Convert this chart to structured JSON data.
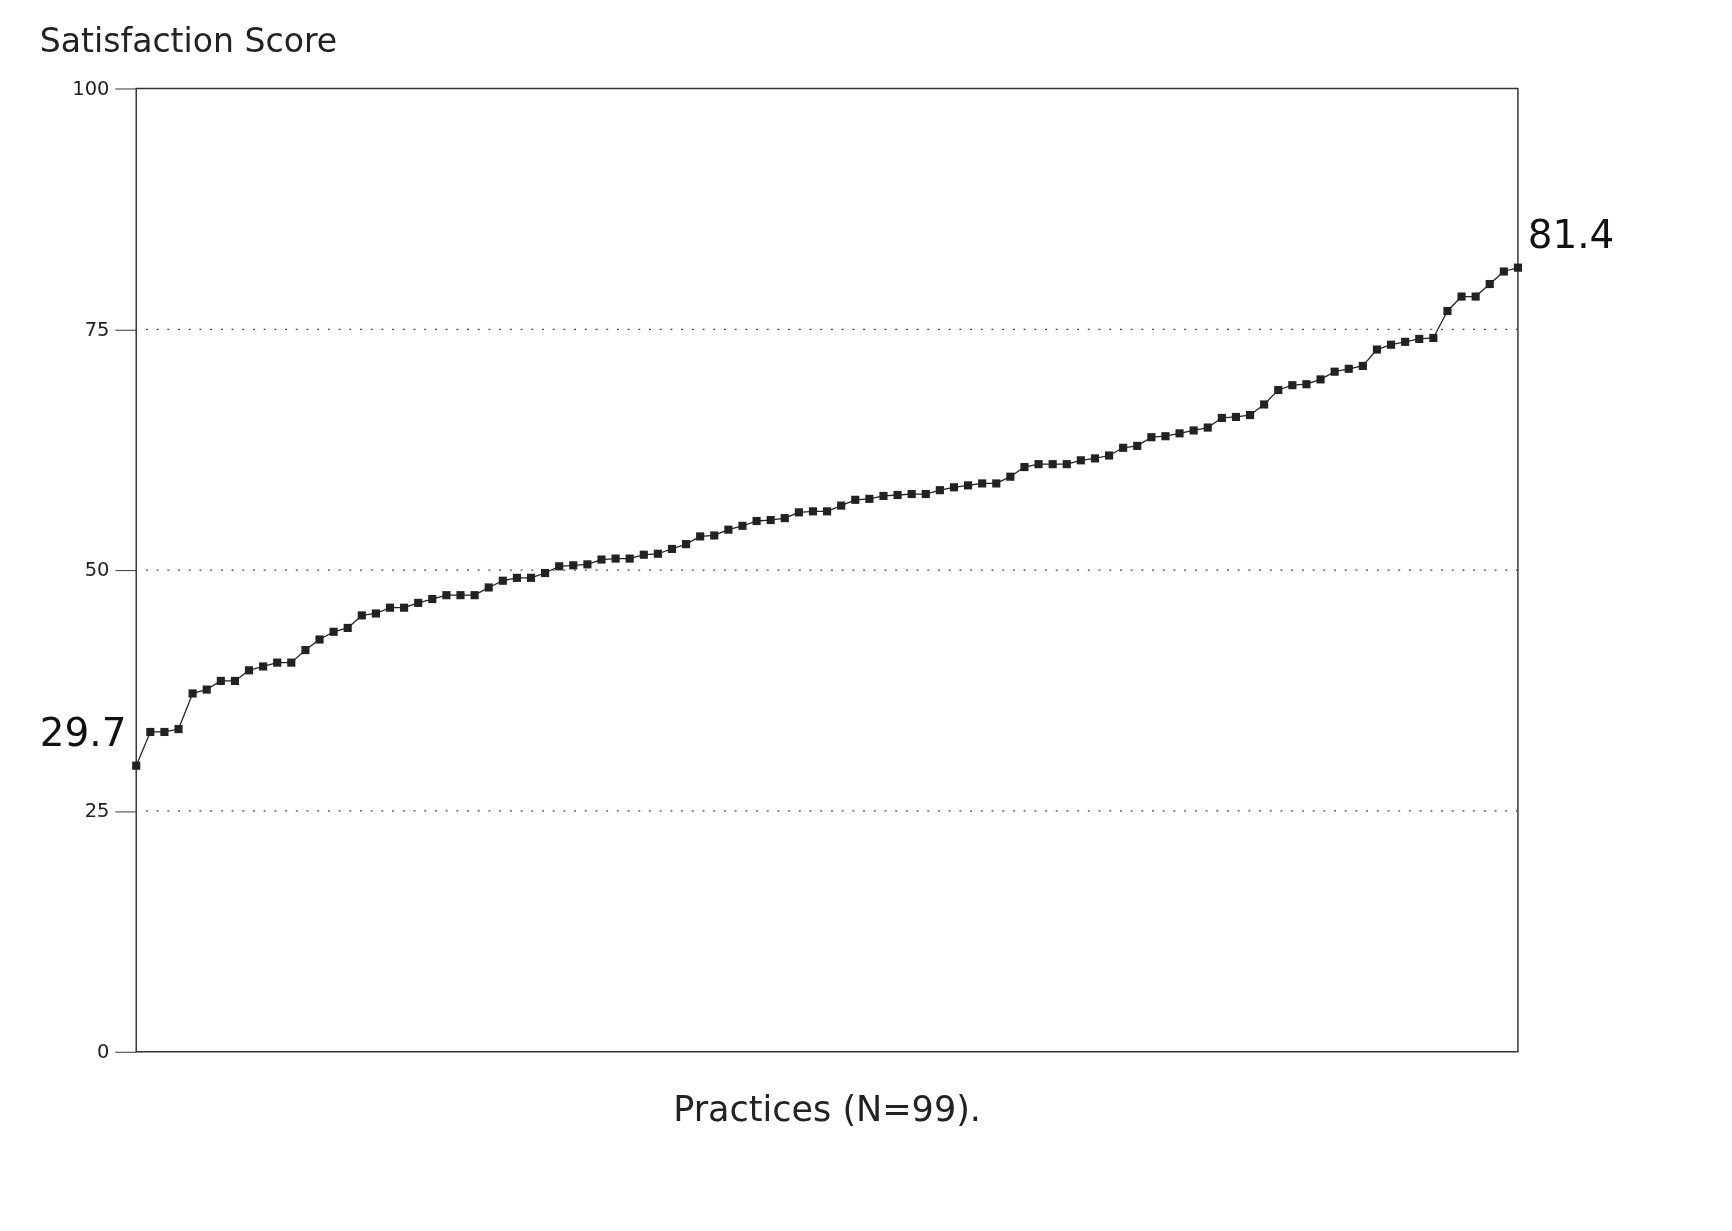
{
  "chart_data": {
    "type": "line",
    "ylabel": "Satisfaction Score",
    "xlabel": "Practices (N=99).",
    "categories": [
      null,
      null,
      null,
      null,
      null,
      null,
      null,
      null,
      null,
      null,
      null,
      null,
      null,
      null,
      null,
      null,
      null,
      null,
      null,
      null,
      null,
      null,
      null,
      null,
      null,
      null,
      null,
      null,
      null,
      null,
      null,
      null,
      null,
      null,
      null,
      null,
      null,
      null,
      null,
      null,
      null,
      null,
      null,
      null,
      null,
      null,
      null,
      null,
      null,
      null,
      null,
      null,
      null,
      null,
      null,
      null,
      null,
      null,
      null,
      null,
      null,
      null,
      null,
      null,
      null,
      null,
      null,
      null,
      null,
      null,
      null,
      null,
      null,
      null,
      null,
      null,
      null,
      null,
      null,
      null,
      null,
      null,
      null,
      null,
      null,
      null,
      null,
      null,
      null,
      null,
      null,
      null,
      null,
      null,
      null,
      null,
      null,
      null,
      null
    ],
    "series": [
      {
        "color": "#222222",
        "values": [
          29.7,
          33.2,
          33.2,
          33.5,
          37.2,
          37.6,
          38.5,
          38.5,
          39.6,
          40.0,
          40.4,
          40.4,
          41.7,
          42.8,
          43.6,
          44.0,
          45.3,
          45.5,
          46.1,
          46.1,
          46.6,
          47.0,
          47.4,
          47.4,
          47.4,
          48.2,
          48.9,
          49.2,
          49.2,
          49.7,
          50.4,
          50.5,
          50.6,
          51.1,
          51.2,
          51.2,
          51.6,
          51.7,
          52.2,
          52.7,
          53.5,
          53.6,
          54.2,
          54.6,
          55.1,
          55.2,
          55.4,
          56.0,
          56.1,
          56.1,
          56.7,
          57.3,
          57.4,
          57.7,
          57.8,
          57.9,
          57.9,
          58.3,
          58.6,
          58.8,
          59.0,
          59.0,
          59.7,
          60.7,
          61.0,
          61.0,
          61.0,
          61.4,
          61.6,
          61.9,
          62.7,
          62.9,
          63.8,
          63.9,
          64.2,
          64.5,
          64.8,
          65.8,
          65.9,
          66.1,
          67.2,
          68.7,
          69.2,
          69.3,
          69.8,
          70.6,
          70.9,
          71.2,
          72.9,
          73.4,
          73.7,
          74.0,
          74.1,
          76.9,
          78.4,
          78.4,
          79.7,
          81.0,
          81.4
        ],
        "value_labels": [
          "29.7",
          null,
          null,
          null,
          null,
          null,
          null,
          null,
          null,
          null,
          null,
          null,
          null,
          null,
          null,
          null,
          null,
          null,
          null,
          null,
          null,
          null,
          null,
          null,
          null,
          null,
          null,
          null,
          null,
          null,
          null,
          null,
          null,
          null,
          null,
          null,
          null,
          null,
          null,
          null,
          null,
          null,
          null,
          null,
          null,
          null,
          null,
          null,
          null,
          null,
          null,
          null,
          null,
          null,
          null,
          null,
          null,
          null,
          null,
          null,
          null,
          null,
          null,
          null,
          null,
          null,
          null,
          null,
          null,
          null,
          null,
          null,
          null,
          null,
          null,
          null,
          null,
          null,
          null,
          null,
          null,
          null,
          null,
          null,
          null,
          null,
          null,
          null,
          null,
          null,
          null,
          null,
          null,
          null,
          null,
          null,
          null,
          null,
          "81.4"
        ]
      }
    ],
    "ylim": [
      0,
      100
    ],
    "yticks": [
      0,
      25,
      50,
      75,
      100
    ],
    "grid": "y",
    "marker": "square",
    "line_style": "solid",
    "tick_labels": "y"
  }
}
